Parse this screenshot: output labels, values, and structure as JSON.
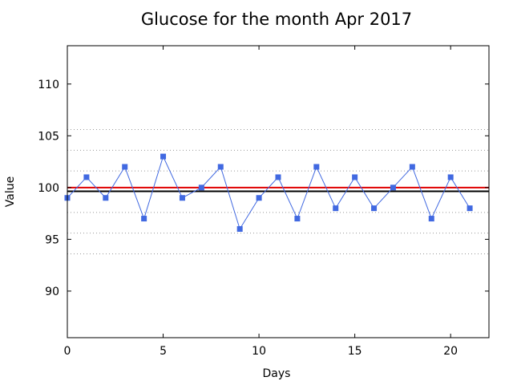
{
  "chart_data": {
    "type": "line",
    "title": "Glucose for the month Apr 2017",
    "xlabel": "Days",
    "ylabel": "Value",
    "xlim": [
      0,
      22
    ],
    "ylim": [
      85.5,
      113.7
    ],
    "x_ticks": [
      0,
      5,
      10,
      15,
      20
    ],
    "y_ticks": [
      90,
      95,
      100,
      105,
      110
    ],
    "grid": "horizontal dotted",
    "series": [
      {
        "x": [
          0,
          1,
          2,
          3,
          4,
          5,
          6,
          7,
          8,
          9,
          10,
          11,
          12,
          13,
          14,
          15,
          16,
          17,
          18,
          19,
          20,
          21
        ],
        "values": [
          99,
          101,
          99,
          102,
          97,
          103,
          99,
          100,
          102,
          96,
          99,
          101,
          97,
          102,
          98,
          101,
          98,
          100,
          102,
          97,
          101,
          98
        ],
        "color": "#4169e1",
        "marker": "square"
      }
    ],
    "reference_lines": [
      {
        "y": 100,
        "color": "#e00000"
      },
      {
        "y": 99.64,
        "color": "#000000"
      }
    ],
    "gridlines_y": [
      93.6,
      95.6,
      97.6,
      101.6,
      103.6,
      105.6
    ]
  }
}
